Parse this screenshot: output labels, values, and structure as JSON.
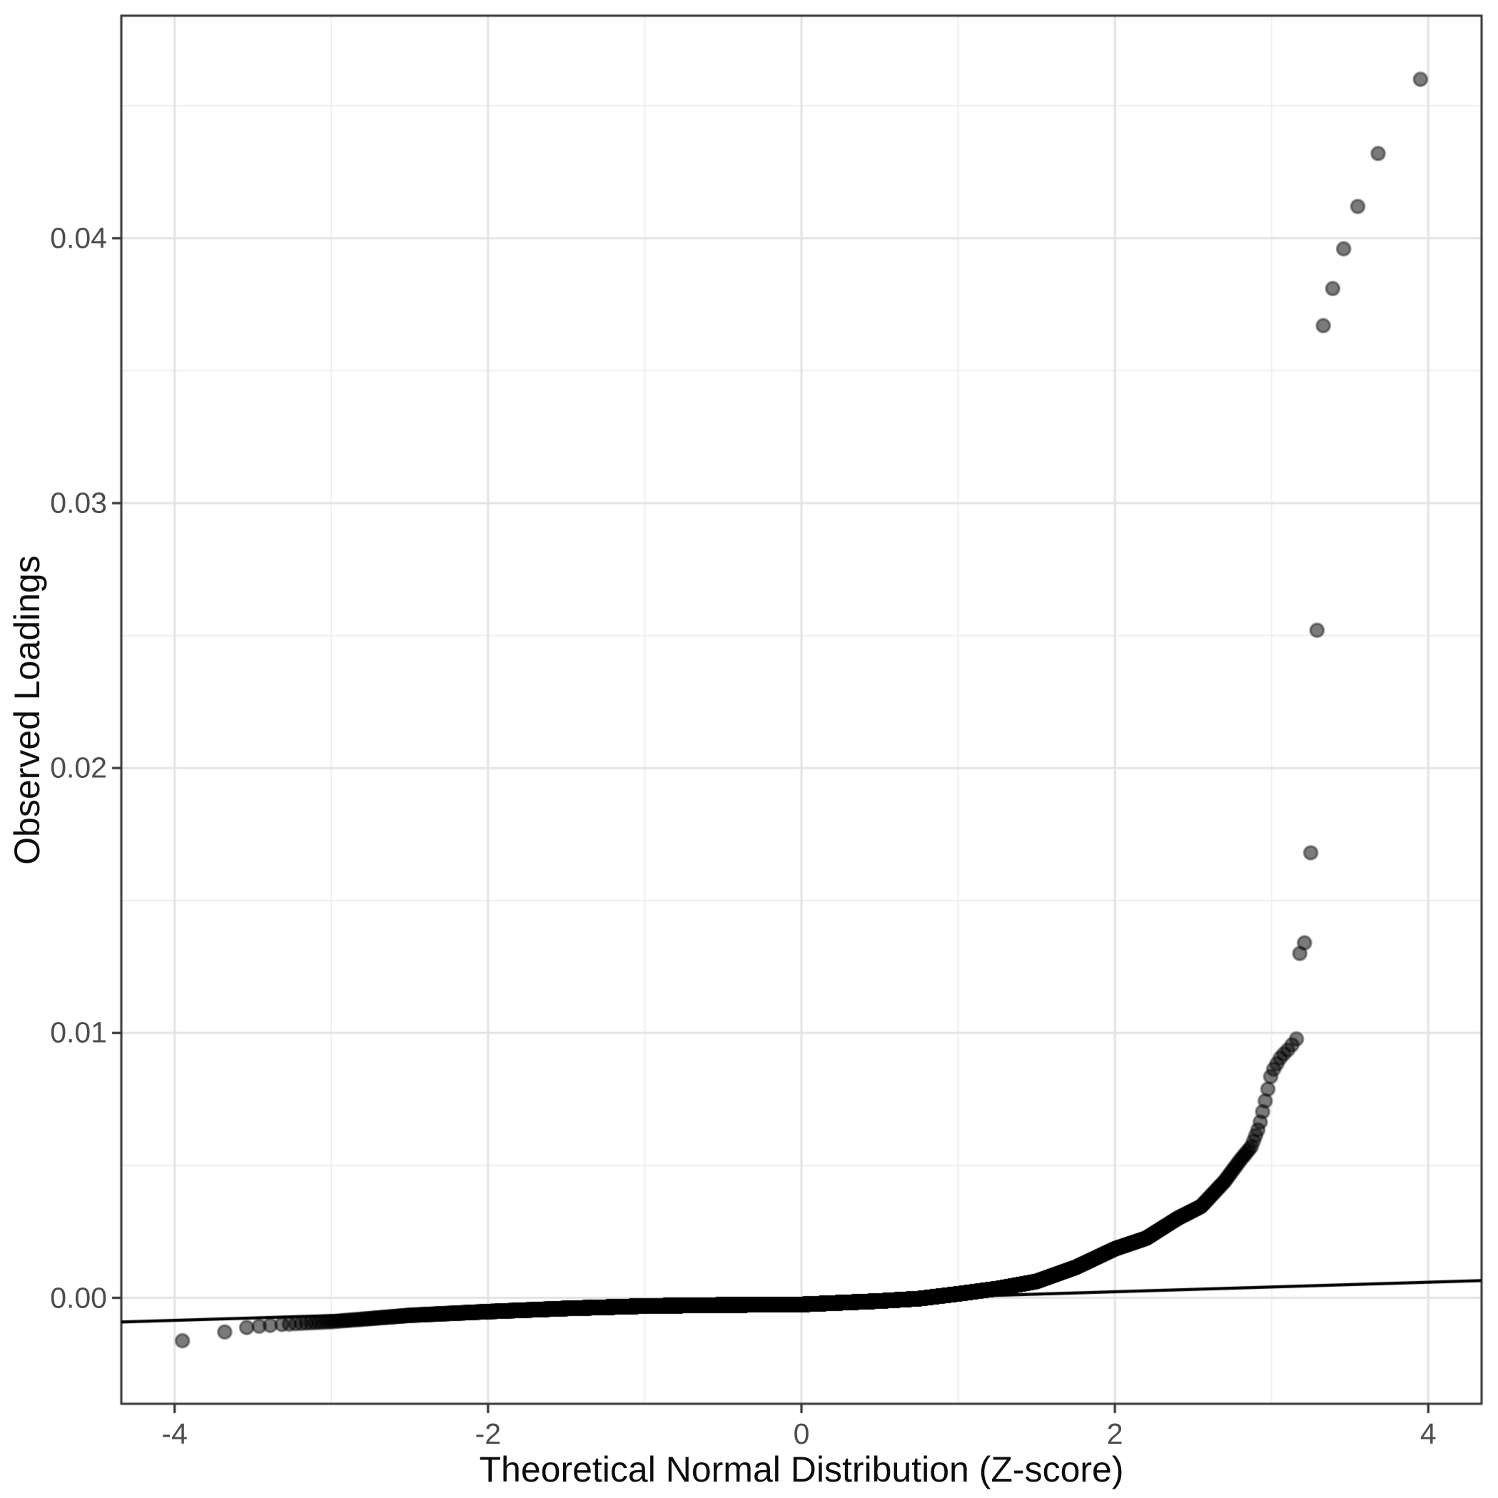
{
  "chart_data": {
    "type": "scatter",
    "title": "",
    "xlabel": "Theoretical Normal Distribution (Z-score)",
    "ylabel": "Observed Loadings",
    "xlim": [
      -4.34,
      4.34
    ],
    "ylim": [
      -0.004,
      0.0484
    ],
    "grid": true,
    "legend": "none",
    "x_ticks": [
      {
        "value": -4,
        "label": "-4"
      },
      {
        "value": -2,
        "label": "-2"
      },
      {
        "value": 0,
        "label": "0"
      },
      {
        "value": 2,
        "label": "2"
      },
      {
        "value": 4,
        "label": "4"
      }
    ],
    "y_ticks": [
      {
        "value": 0.0,
        "label": "0.00"
      },
      {
        "value": 0.01,
        "label": "0.01"
      },
      {
        "value": 0.02,
        "label": "0.02"
      },
      {
        "value": 0.03,
        "label": "0.03"
      },
      {
        "value": 0.04,
        "label": "0.04"
      }
    ],
    "x_minor": [
      -3,
      -1,
      1,
      3
    ],
    "y_minor": [
      0.005,
      0.015,
      0.025,
      0.035,
      0.045
    ],
    "panel": {
      "background": "#ffffff",
      "border_color": "#343434",
      "grid_major_color": "#e3e3e3",
      "grid_minor_color": "#ededed",
      "tick_color": "#343434",
      "tick_label_color": "#4d4d4d",
      "title_color": "#0d0d0d"
    },
    "point_style": {
      "radius": 9.3,
      "fill": "rgba(0,0,0,0.52)",
      "stroke": "rgba(0,0,0,0.42)",
      "stroke_width": 3
    },
    "ref_line": {
      "x1": -4.34,
      "y1": -0.00091,
      "x2": 4.34,
      "y2": 0.00065,
      "color": "#000000",
      "width": 4.2
    },
    "dense_series": {
      "comment_visible_content": "QQ plot dense band: sample loadings vs normal quantiles",
      "n_points": 12000,
      "z_range_generated": [
        -3.35,
        3.16
      ],
      "curve_anchors": [
        [
          -3.35,
          -0.00102
        ],
        [
          -3.0,
          -0.0009
        ],
        [
          -2.5,
          -0.00066
        ],
        [
          -2.0,
          -0.00052
        ],
        [
          -1.5,
          -0.0004
        ],
        [
          -1.0,
          -0.00031
        ],
        [
          -0.5,
          -0.00027
        ],
        [
          0.0,
          -0.00025
        ],
        [
          0.5,
          -0.00012
        ],
        [
          0.75,
          -3e-05
        ],
        [
          1.0,
          0.00015
        ],
        [
          1.25,
          0.00035
        ],
        [
          1.5,
          0.00062
        ],
        [
          1.75,
          0.00115
        ],
        [
          2.0,
          0.00185
        ],
        [
          2.2,
          0.00225
        ],
        [
          2.4,
          0.003
        ],
        [
          2.55,
          0.00345
        ],
        [
          2.7,
          0.0044
        ],
        [
          2.8,
          0.0052
        ],
        [
          2.87,
          0.0057
        ],
        [
          2.92,
          0.00645
        ],
        [
          2.96,
          0.00745
        ],
        [
          3.0,
          0.0085
        ],
        [
          3.06,
          0.0091
        ],
        [
          3.11,
          0.0094
        ],
        [
          3.16,
          0.00978
        ]
      ]
    },
    "left_tail_points": [
      [
        -3.95,
        -0.00162
      ],
      [
        -3.68,
        -0.00129
      ],
      [
        -3.54,
        -0.00112
      ],
      [
        -3.46,
        -0.00107
      ],
      [
        -3.39,
        -0.00104
      ]
    ],
    "outlier_points": [
      [
        3.18,
        0.013
      ],
      [
        3.21,
        0.0134
      ],
      [
        3.25,
        0.0168
      ],
      [
        3.29,
        0.0252
      ],
      [
        3.33,
        0.0367
      ],
      [
        3.39,
        0.0381
      ],
      [
        3.46,
        0.0396
      ],
      [
        3.55,
        0.0412
      ],
      [
        3.68,
        0.0432
      ],
      [
        3.95,
        0.046
      ]
    ]
  }
}
